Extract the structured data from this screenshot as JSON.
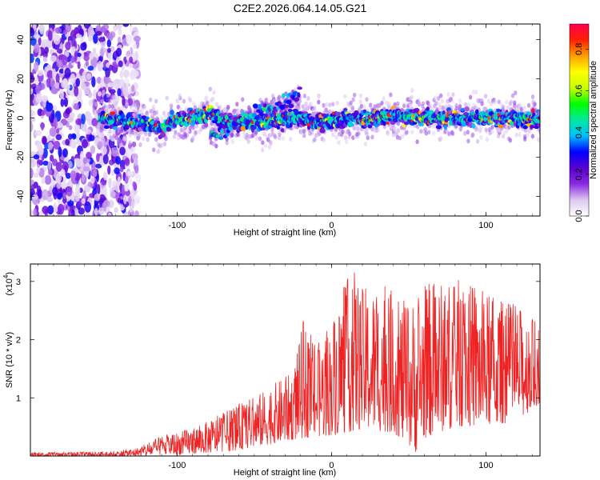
{
  "title": "C2E2.2026.064.14.05.G21",
  "chart_data": [
    {
      "type": "heatmap",
      "title": "C2E2.2026.064.14.05.G21",
      "xlabel": "Height of straight line (km)",
      "ylabel": "Frequency (Hz)",
      "xlim": [
        -195,
        135
      ],
      "ylim": [
        -50,
        48
      ],
      "x_ticks": [
        -100,
        0,
        100
      ],
      "x_tick_labels": [
        "-100",
        "0",
        "100"
      ],
      "y_ticks": [
        40,
        20,
        0,
        -20,
        -40
      ],
      "y_tick_labels": [
        "40",
        "20",
        "0",
        "-20",
        "-40"
      ],
      "colorbar": {
        "label": "Normalized spectral amplitude",
        "range": [
          0.0,
          0.92
        ],
        "ticks": [
          0.0,
          0.2,
          0.4,
          0.6,
          0.8
        ],
        "tick_labels": [
          "0.0",
          "0.2",
          "0.4",
          "0.6",
          "0.8"
        ],
        "colormap": [
          "#ffffff",
          "#dcc8f0",
          "#8a2be2",
          "#5a00d0",
          "#0000ff",
          "#00c0ff",
          "#00e8a0",
          "#00ff00",
          "#c8ff00",
          "#ffff00",
          "#ffa000",
          "#ff2000",
          "#ff0050"
        ]
      },
      "features": {
        "noise_region_x": [
          -195,
          -133
        ],
        "band_center_hz": [
          [
            -150,
            0
          ],
          [
            -140,
            -1
          ],
          [
            -120,
            -3
          ],
          [
            -112,
            -5
          ],
          [
            -100,
            -1
          ],
          [
            -90,
            0
          ],
          [
            -82,
            1
          ],
          [
            -78,
            3
          ],
          [
            -72,
            0
          ],
          [
            -60,
            -3
          ],
          [
            -45,
            -2
          ],
          [
            -30,
            -1
          ],
          [
            -20,
            0
          ],
          [
            -10,
            -2
          ],
          [
            0,
            -1
          ],
          [
            10,
            0
          ],
          [
            20,
            -1
          ],
          [
            30,
            0
          ],
          [
            40,
            1
          ],
          [
            60,
            0
          ],
          [
            80,
            0
          ],
          [
            100,
            0
          ],
          [
            120,
            0
          ],
          [
            135,
            -1
          ]
        ],
        "side_branch_hz": [
          [
            -78,
            -9
          ],
          [
            -70,
            -6
          ],
          [
            -60,
            -2
          ],
          [
            -50,
            2
          ],
          [
            -40,
            5
          ],
          [
            -30,
            8
          ],
          [
            -22,
            11
          ]
        ],
        "band_width_hz": 5
      }
    },
    {
      "type": "line",
      "xlabel": "Height of straight line (km)",
      "ylabel": "SNR (10 * v/v)",
      "y_scale_label": "(x10",
      "y_scale_exponent": "4",
      "y_scale_suffix": ")",
      "xlim": [
        -195,
        135
      ],
      "ylim": [
        0,
        3.3
      ],
      "x_ticks": [
        -100,
        0,
        100
      ],
      "x_tick_labels": [
        "-100",
        "0",
        "100"
      ],
      "y_ticks": [
        1,
        2,
        3
      ],
      "y_tick_labels": [
        "1",
        "2",
        "3"
      ],
      "color": "#ee2222",
      "envelope_max": [
        [
          -195,
          0.06
        ],
        [
          -140,
          0.08
        ],
        [
          -125,
          0.15
        ],
        [
          -110,
          0.35
        ],
        [
          -95,
          0.45
        ],
        [
          -80,
          0.6
        ],
        [
          -60,
          0.9
        ],
        [
          -45,
          1.1
        ],
        [
          -40,
          1.2
        ],
        [
          -25,
          1.45
        ],
        [
          -18,
          2.35
        ],
        [
          -10,
          1.9
        ],
        [
          -2,
          2.2
        ],
        [
          8,
          2.95
        ],
        [
          14,
          3.25
        ],
        [
          20,
          2.9
        ],
        [
          35,
          2.95
        ],
        [
          50,
          2.6
        ],
        [
          60,
          3.0
        ],
        [
          70,
          3.0
        ],
        [
          85,
          3.05
        ],
        [
          100,
          2.8
        ],
        [
          120,
          2.6
        ],
        [
          130,
          2.4
        ],
        [
          135,
          2.3
        ]
      ],
      "envelope_min": [
        [
          -195,
          0.0
        ],
        [
          -130,
          0.0
        ],
        [
          -100,
          0.02
        ],
        [
          -80,
          0.05
        ],
        [
          -60,
          0.1
        ],
        [
          -40,
          0.2
        ],
        [
          -20,
          0.3
        ],
        [
          0,
          0.35
        ],
        [
          20,
          0.45
        ],
        [
          40,
          0.4
        ],
        [
          55,
          0.05
        ],
        [
          60,
          0.3
        ],
        [
          80,
          0.5
        ],
        [
          100,
          0.5
        ],
        [
          120,
          0.6
        ],
        [
          135,
          0.9
        ]
      ]
    }
  ]
}
